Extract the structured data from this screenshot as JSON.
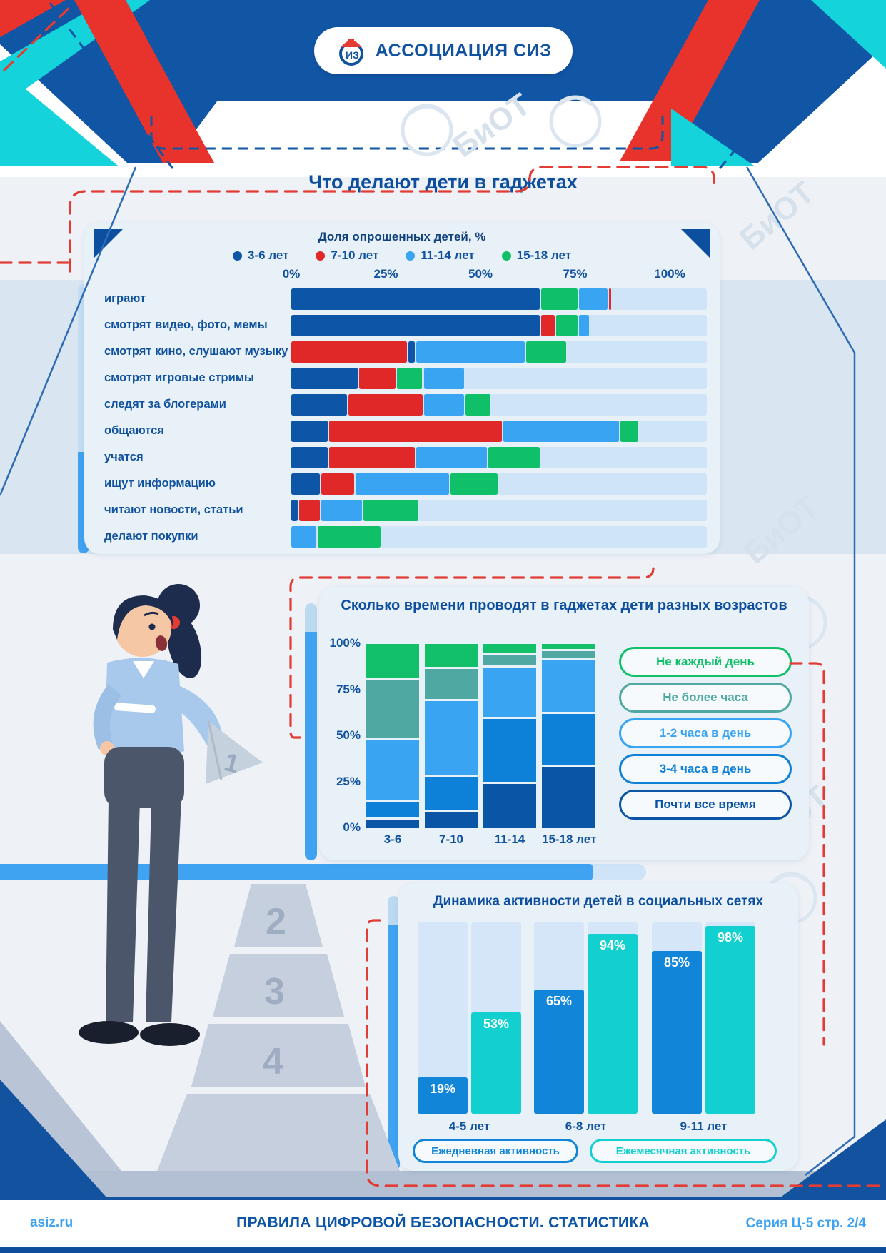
{
  "page": {
    "watermark": "БиОТ",
    "footer": {
      "site": "asiz.ru",
      "title": "ПРАВИЛА ЦИФРОВОЙ БЕЗОПАСНОСТИ. СТАТИСТИКА",
      "series": "Серия Ц-5 стр. 2/4"
    }
  },
  "header": {
    "logo_text": "АССОЦИАЦИЯ СИЗ"
  },
  "illustration": {
    "steps": [
      "2",
      "3",
      "4"
    ],
    "cone_label": "1"
  },
  "colors": {
    "header_navy": "#1156a5",
    "accent_red": "#e8332d",
    "accent_cyan": "#14d3da",
    "bright_blue": "#3fa3f2",
    "card_bg": "#e9f1f8",
    "track": "#cfe5f7",
    "text_navy": "#11529e"
  },
  "chart_data": [
    {
      "type": "bar",
      "orientation": "horizontal-stacked",
      "title": "Что делают дети в гаджетах",
      "subtitle": "Доля опрошенных детей, %",
      "xlim": [
        0,
        100
      ],
      "x_ticks": [
        "0%",
        "25%",
        "50%",
        "75%",
        "100%"
      ],
      "legend": [
        {
          "label": "3-6 лет",
          "color": "#0d55a6"
        },
        {
          "label": "7-10 лет",
          "color": "#e02828"
        },
        {
          "label": "11-14 лет",
          "color": "#38a4f2"
        },
        {
          "label": "15-18 лет",
          "color": "#0fc069"
        }
      ],
      "rows": [
        {
          "label": "играют",
          "segments": [
            {
              "series": "3-6 лет",
              "value": 66
            },
            {
              "series": "15-18 лет",
              "value": 10
            },
            {
              "series": "11-14 лет",
              "value": 8
            },
            {
              "series": "7-10 лет",
              "value": 1
            }
          ]
        },
        {
          "label": "смотрят видео, фото, мемы",
          "segments": [
            {
              "series": "3-6 лет",
              "value": 66
            },
            {
              "series": "7-10 лет",
              "value": 4
            },
            {
              "series": "15-18 лет",
              "value": 6
            },
            {
              "series": "11-14 лет",
              "value": 3
            }
          ]
        },
        {
          "label": "смотрят кино, слушают музыку",
          "segments": [
            {
              "series": "7-10 лет",
              "value": 31
            },
            {
              "series": "3-6 лет",
              "value": 2
            },
            {
              "series": "11-14 лет",
              "value": 29
            },
            {
              "series": "15-18 лет",
              "value": 11
            }
          ]
        },
        {
          "label": "смотрят игровые стримы",
          "segments": [
            {
              "series": "3-6 лет",
              "value": 18
            },
            {
              "series": "7-10 лет",
              "value": 10
            },
            {
              "series": "15-18 лет",
              "value": 7
            },
            {
              "series": "11-14 лет",
              "value": 11
            }
          ]
        },
        {
          "label": "следят за блогерами",
          "segments": [
            {
              "series": "3-6 лет",
              "value": 15
            },
            {
              "series": "7-10 лет",
              "value": 20
            },
            {
              "series": "11-14 лет",
              "value": 11
            },
            {
              "series": "15-18 лет",
              "value": 7
            }
          ]
        },
        {
          "label": "общаются",
          "segments": [
            {
              "series": "3-6 лет",
              "value": 10
            },
            {
              "series": "7-10 лет",
              "value": 46
            },
            {
              "series": "11-14 лет",
              "value": 31
            },
            {
              "series": "15-18 лет",
              "value": 5
            }
          ]
        },
        {
          "label": "учатся",
          "segments": [
            {
              "series": "3-6 лет",
              "value": 10
            },
            {
              "series": "7-10 лет",
              "value": 23
            },
            {
              "series": "11-14 лет",
              "value": 19
            },
            {
              "series": "15-18 лет",
              "value": 14
            }
          ]
        },
        {
          "label": "ищут информацию",
          "segments": [
            {
              "series": "3-6 лет",
              "value": 8
            },
            {
              "series": "7-10 лет",
              "value": 9
            },
            {
              "series": "11-14 лет",
              "value": 25
            },
            {
              "series": "15-18 лет",
              "value": 13
            }
          ]
        },
        {
          "label": "читают новости, статьи",
          "segments": [
            {
              "series": "3-6 лет",
              "value": 2
            },
            {
              "series": "7-10 лет",
              "value": 6
            },
            {
              "series": "11-14 лет",
              "value": 11
            },
            {
              "series": "15-18 лет",
              "value": 15
            }
          ]
        },
        {
          "label": "делают покупки",
          "segments": [
            {
              "series": "11-14 лет",
              "value": 7
            },
            {
              "series": "15-18 лет",
              "value": 17
            }
          ]
        }
      ]
    },
    {
      "type": "bar",
      "orientation": "vertical-stacked-100",
      "title": "Сколько времени проводят в гаджетах дети разных возрастов",
      "y_ticks": [
        "100%",
        "75%",
        "50%",
        "25%",
        "0%"
      ],
      "categories": [
        "3-6",
        "7-10",
        "11-14",
        "15-18 лет"
      ],
      "legend": [
        {
          "label": "Не каждый день",
          "color": "#12c069"
        },
        {
          "label": "Не более часа",
          "color": "#4fa9a2"
        },
        {
          "label": "1-2 часа в день",
          "color": "#38a4f2"
        },
        {
          "label": "3-4 часа в день",
          "color": "#0d80d8"
        },
        {
          "label": "Почти все время",
          "color": "#0b55a6"
        }
      ],
      "series": [
        {
          "name": "Не каждый день",
          "values": [
            19,
            13,
            5,
            3
          ]
        },
        {
          "name": "Не более часа",
          "values": [
            33,
            17,
            6,
            4
          ]
        },
        {
          "name": "1-2 часа в день",
          "values": [
            34,
            42,
            28,
            29
          ]
        },
        {
          "name": "3-4 часа в день",
          "values": [
            9,
            19,
            36,
            29
          ]
        },
        {
          "name": "Почти все время",
          "values": [
            5,
            9,
            25,
            35
          ]
        }
      ]
    },
    {
      "type": "bar",
      "orientation": "vertical-grouped",
      "title": "Динамика активности детей в социальных сетях",
      "categories": [
        "4-5 лет",
        "6-8 лет",
        "9-11 лет"
      ],
      "ylim": [
        0,
        100
      ],
      "value_suffix": "%",
      "series": [
        {
          "name": "Ежедневная активность",
          "color": "#1186d8",
          "values": [
            19,
            65,
            85
          ]
        },
        {
          "name": "Ежемесячная активность",
          "color": "#12d0d0",
          "values": [
            53,
            94,
            98
          ]
        }
      ]
    }
  ]
}
